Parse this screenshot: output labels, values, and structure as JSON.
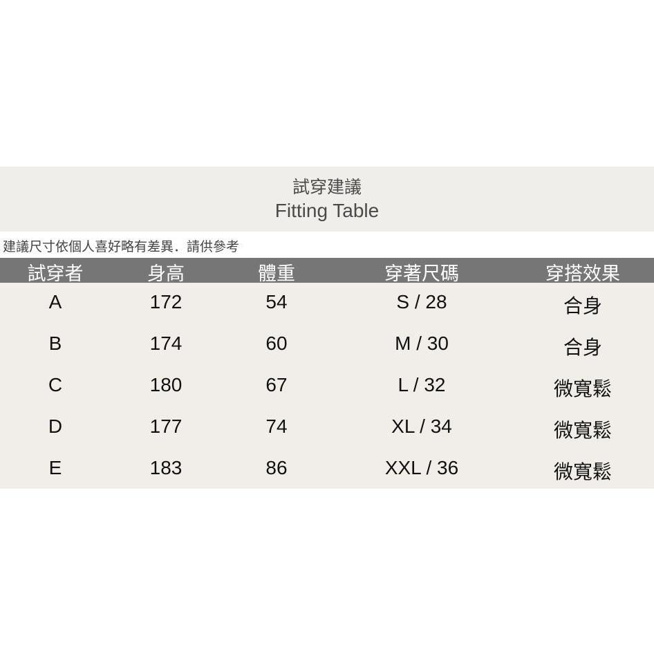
{
  "title_zh": "試穿建議",
  "title_en": "Fitting Table",
  "note": "建議尺寸依個人喜好略有差異．請供參考",
  "headers": [
    "試穿者",
    "身高",
    "體重",
    "穿著尺碼",
    "穿搭效果"
  ],
  "rows": [
    [
      "A",
      "172",
      "54",
      "S / 28",
      "合身"
    ],
    [
      "B",
      "174",
      "60",
      "M / 30",
      "合身"
    ],
    [
      "C",
      "180",
      "67",
      "L / 32",
      "微寬鬆"
    ],
    [
      "D",
      "177",
      "74",
      "XL / 34",
      "微寬鬆"
    ],
    [
      "E",
      "183",
      "86",
      "XXL / 36",
      "微寬鬆"
    ]
  ]
}
